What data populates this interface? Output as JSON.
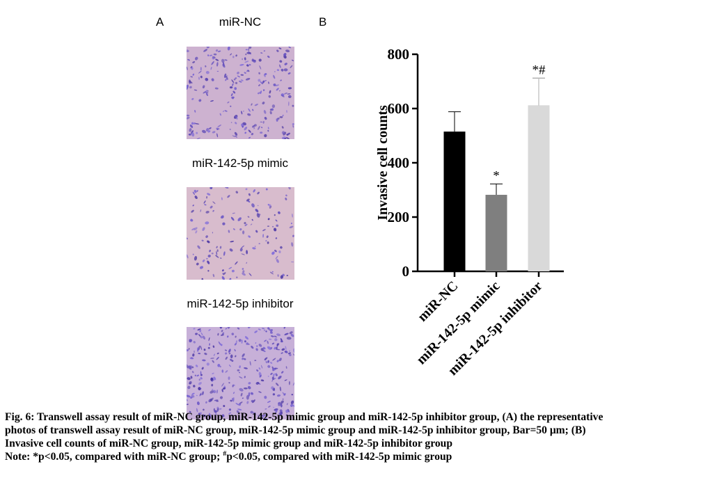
{
  "panel_a_label": "A",
  "panel_b_label": "B",
  "images": [
    {
      "title": "miR-NC",
      "density": 0.55,
      "base": "#cdb2d0"
    },
    {
      "title": "miR-142-5p mimic",
      "density": 0.35,
      "base": "#d8bccd"
    },
    {
      "title": "miR-142-5p inhibitor",
      "density": 0.75,
      "base": "#c7b0d8"
    }
  ],
  "chart_data": {
    "type": "bar",
    "categories": [
      "miR-NC",
      "miR-142-5p mimic",
      "miR-142-5p inhibitor"
    ],
    "values": [
      515,
      282,
      612
    ],
    "errors": [
      73,
      40,
      100
    ],
    "colors": [
      "#000000",
      "#7f7f7f",
      "#d9d9d9"
    ],
    "annotations": [
      "",
      "*",
      "*#"
    ],
    "ylabel": "Invasive cell counts",
    "xlabel": "",
    "ylim": [
      0,
      800
    ],
    "yticks": [
      0,
      200,
      400,
      600,
      800
    ],
    "grid": false
  },
  "caption": {
    "line1": "Fig. 6: Transwell assay result of miR-NC group, miR-142-5p mimic group and miR-142-5p inhibitor group, (A) the representative",
    "line2": "photos of transwell assay result of miR-NC group, miR-142-5p mimic group and miR-142-5p inhibitor group, Bar=50 μm; (B)",
    "line3": "Invasive cell counts of miR-NC group, miR-142-5p mimic group and miR-142-5p inhibitor group",
    "note_a": "Note: *p<0.05, compared with miR-NC group; ",
    "note_sup": "#",
    "note_b": "p<0.05, compared with miR-142-5p mimic group"
  }
}
